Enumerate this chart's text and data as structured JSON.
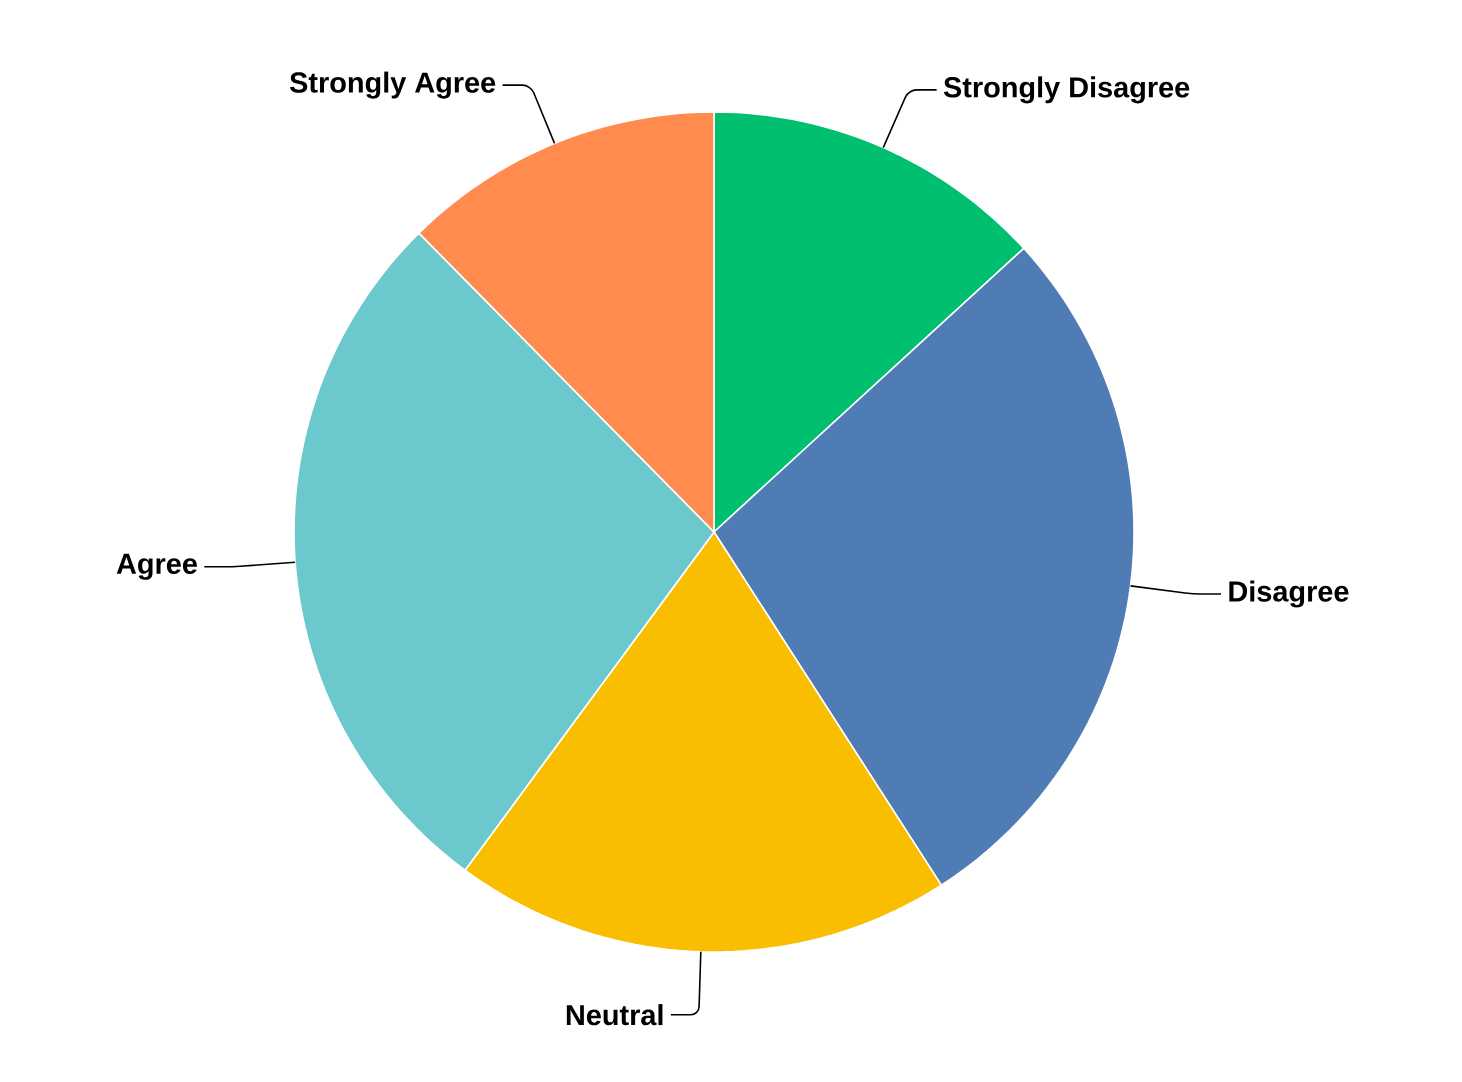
{
  "chart_data": {
    "type": "pie",
    "categories": [
      "Strongly Disagree",
      "Disagree",
      "Neutral",
      "Agree",
      "Strongly Agree"
    ],
    "values": [
      13.2,
      27.7,
      19.2,
      27.5,
      12.4
    ],
    "colors": [
      "#00bf6f",
      "#507cb6",
      "#f9be00",
      "#6bc8cd",
      "#ff8b4f"
    ]
  }
}
